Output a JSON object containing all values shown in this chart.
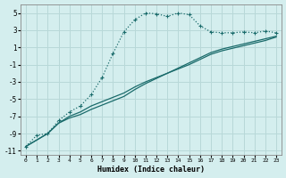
{
  "xlabel": "Humidex (Indice chaleur)",
  "bg_color": "#d4eeee",
  "grid_color": "#b8d8d8",
  "line_color": "#1a6b6b",
  "ylim": [
    -11.5,
    6.0
  ],
  "xlim": [
    -0.5,
    23.5
  ],
  "yticks": [
    -11,
    -9,
    -7,
    -5,
    -3,
    -1,
    1,
    3,
    5
  ],
  "xticks": [
    0,
    1,
    2,
    3,
    4,
    5,
    6,
    7,
    8,
    9,
    10,
    11,
    12,
    13,
    14,
    15,
    16,
    17,
    18,
    19,
    20,
    21,
    22,
    23
  ],
  "curve_x": [
    0,
    1,
    2,
    3,
    4,
    5,
    6,
    7,
    8,
    9,
    10,
    11,
    12,
    13,
    14,
    15,
    16,
    17,
    18,
    19,
    20,
    21,
    22,
    23
  ],
  "curve_y": [
    -10.5,
    -9.2,
    -9.0,
    -7.5,
    -6.5,
    -5.8,
    -4.5,
    -2.5,
    0.3,
    2.8,
    4.2,
    5.0,
    4.9,
    4.6,
    5.0,
    4.8,
    3.5,
    2.8,
    2.7,
    2.7,
    2.8,
    2.7,
    2.9,
    2.7
  ],
  "line2_x": [
    0,
    2,
    3,
    4,
    5,
    6,
    7,
    8,
    9,
    10,
    11,
    12,
    13,
    14,
    15,
    16,
    17,
    18,
    19,
    20,
    21,
    22,
    23
  ],
  "line2_y": [
    -10.5,
    -9.0,
    -7.8,
    -7.0,
    -6.5,
    -5.8,
    -5.3,
    -4.8,
    -4.3,
    -3.6,
    -3.0,
    -2.5,
    -2.0,
    -1.5,
    -1.0,
    -0.4,
    0.2,
    0.6,
    0.9,
    1.2,
    1.5,
    1.8,
    2.2
  ],
  "line3_x": [
    0,
    2,
    3,
    4,
    5,
    6,
    7,
    8,
    9,
    10,
    11,
    12,
    13,
    14,
    15,
    16,
    17,
    18,
    19,
    20,
    21,
    22,
    23
  ],
  "line3_y": [
    -10.5,
    -9.0,
    -7.8,
    -7.2,
    -6.8,
    -6.2,
    -5.7,
    -5.2,
    -4.7,
    -3.9,
    -3.2,
    -2.6,
    -2.0,
    -1.4,
    -0.8,
    -0.2,
    0.4,
    0.8,
    1.1,
    1.4,
    1.7,
    2.0,
    2.3
  ]
}
